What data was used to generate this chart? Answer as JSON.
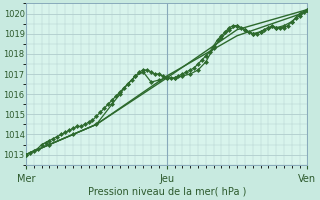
{
  "background_color": "#c8eae0",
  "plot_bg_color": "#d8f4ec",
  "grid_color": "#b0cccc",
  "line_color": "#2d6a2d",
  "marker_color": "#2d6a2d",
  "xlabel": "Pression niveau de la mer( hPa )",
  "xlim": [
    0,
    36
  ],
  "ylim": [
    1012.5,
    1020.5
  ],
  "yticks": [
    1013,
    1014,
    1015,
    1016,
    1017,
    1018,
    1019,
    1020
  ],
  "xtick_positions": [
    0,
    18,
    36
  ],
  "xtick_labels": [
    "Mer",
    "Jeu",
    "Ven"
  ],
  "series": [
    {
      "x": [
        0,
        0.5,
        1,
        1.5,
        2,
        2.5,
        3,
        3.5,
        4,
        4.5,
        5,
        5.5,
        6,
        6.5,
        7,
        7.5,
        8,
        8.5,
        9,
        9.5,
        10,
        10.5,
        11,
        11.5,
        12,
        12.5,
        13,
        13.5,
        14,
        14.5,
        15,
        15.5,
        16,
        16.5,
        17,
        17.5,
        18,
        18.5,
        19,
        19.5,
        20,
        20.5,
        21,
        21.5,
        22,
        22.5,
        23,
        23.5,
        24,
        24.5,
        25,
        25.5,
        26,
        26.5,
        27,
        27.5,
        28,
        28.5,
        29,
        29.5,
        30,
        30.5,
        31,
        31.5,
        32,
        32.5,
        33,
        33.5,
        34,
        34.5,
        35,
        35.5,
        36
      ],
      "y": [
        1013.0,
        1013.1,
        1013.2,
        1013.3,
        1013.5,
        1013.6,
        1013.7,
        1013.8,
        1013.9,
        1014.0,
        1014.1,
        1014.2,
        1014.3,
        1014.4,
        1014.4,
        1014.5,
        1014.6,
        1014.7,
        1014.9,
        1015.1,
        1015.3,
        1015.5,
        1015.7,
        1015.9,
        1016.1,
        1016.3,
        1016.5,
        1016.7,
        1016.9,
        1017.1,
        1017.2,
        1017.2,
        1017.1,
        1017.0,
        1017.0,
        1016.9,
        1016.8,
        1016.8,
        1016.8,
        1016.9,
        1017.0,
        1017.1,
        1017.2,
        1017.3,
        1017.5,
        1017.7,
        1017.9,
        1018.1,
        1018.4,
        1018.7,
        1018.9,
        1019.1,
        1019.3,
        1019.4,
        1019.4,
        1019.3,
        1019.2,
        1019.1,
        1019.0,
        1019.0,
        1019.1,
        1019.2,
        1019.3,
        1019.4,
        1019.3,
        1019.3,
        1019.3,
        1019.4,
        1019.6,
        1019.8,
        1020.0,
        1020.1,
        1020.2
      ],
      "with_markers": true,
      "lw": 0.9
    },
    {
      "x": [
        0,
        3,
        6,
        9,
        11,
        12,
        13,
        14,
        15,
        16,
        17,
        18,
        19,
        20,
        21,
        22,
        23,
        24,
        25,
        26,
        27,
        28,
        29,
        30,
        31,
        32,
        33,
        34,
        35,
        36
      ],
      "y": [
        1013.0,
        1013.5,
        1014.0,
        1014.5,
        1015.5,
        1016.0,
        1016.5,
        1016.9,
        1017.1,
        1016.6,
        1016.7,
        1016.8,
        1016.8,
        1016.9,
        1017.0,
        1017.2,
        1017.6,
        1018.3,
        1018.8,
        1019.2,
        1019.4,
        1019.2,
        1019.0,
        1019.1,
        1019.3,
        1019.3,
        1019.4,
        1019.6,
        1019.9,
        1020.2
      ],
      "with_markers": true,
      "lw": 0.9
    },
    {
      "x": [
        0,
        9,
        18,
        27,
        36
      ],
      "y": [
        1013.0,
        1014.5,
        1016.8,
        1019.2,
        1020.2
      ],
      "with_markers": false,
      "lw": 1.0
    },
    {
      "x": [
        0,
        9,
        18,
        27,
        36
      ],
      "y": [
        1013.0,
        1014.5,
        1016.9,
        1018.9,
        1020.1
      ],
      "with_markers": false,
      "lw": 1.0
    }
  ]
}
